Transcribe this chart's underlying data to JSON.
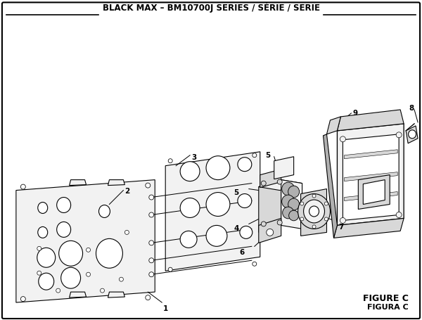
{
  "title": "BLACK MAX – BM10700J SERIES / SÉRIE / SERIE",
  "figure_label": "FIGURE C",
  "figura_label": "FIGURA C",
  "bg_color": "#ffffff",
  "line_color": "#000000",
  "title_fontsize": 8.5,
  "label_fontsize": 7.5,
  "figure_c_fontsize": 9,
  "gray_light": "#f2f2f2",
  "gray_mid": "#d8d8d8",
  "gray_dark": "#b0b0b0",
  "white": "#ffffff"
}
